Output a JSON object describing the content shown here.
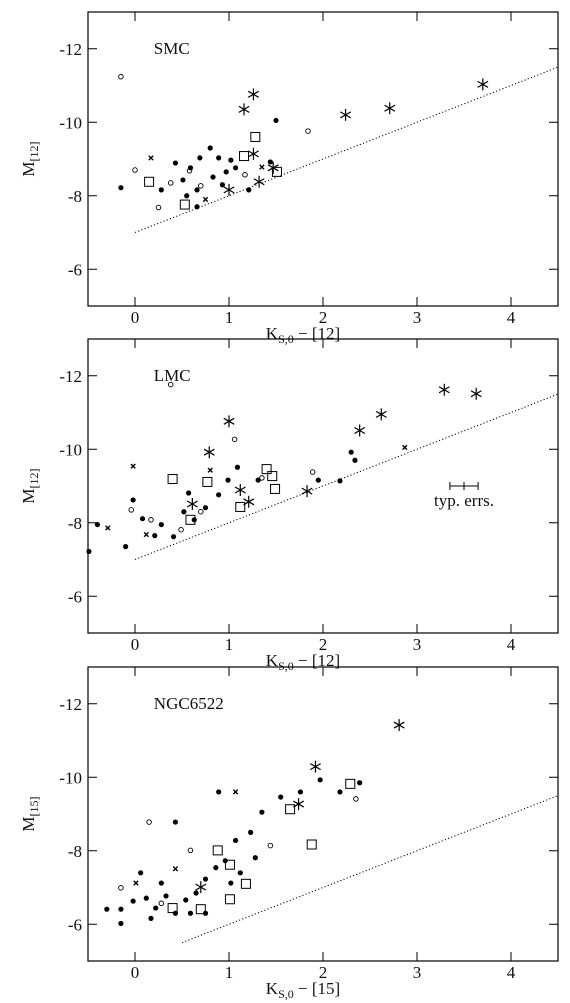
{
  "chart_data": [
    {
      "type": "scatter",
      "title": "SMC",
      "x_label": {
        "main": "K",
        "sub": "S,0",
        "rest": " − [12]"
      },
      "y_label": {
        "main": "M",
        "sub": "[12]"
      },
      "xlim": [
        -0.5,
        4.5
      ],
      "ylim": [
        -5,
        -13
      ],
      "xticks": [
        0,
        1,
        2,
        3,
        4
      ],
      "yticks": [
        -12,
        -10,
        -8,
        -6
      ],
      "reference_line": {
        "x": [
          0,
          4.5
        ],
        "values": [
          -7,
          -11.5
        ],
        "style": "dotted"
      },
      "series": [
        {
          "marker": "asterisk",
          "color": "#000",
          "x": [
            1.26,
            1.16,
            2.24,
            2.71,
            3.7,
            1.26,
            1.0,
            1.32,
            1.47
          ],
          "values": [
            -10.76,
            -10.35,
            -10.2,
            -10.38,
            -11.03,
            -9.14,
            -8.16,
            -8.38,
            -8.76
          ]
        },
        {
          "marker": "square",
          "color": "#000",
          "x": [
            1.28,
            1.16,
            0.15,
            0.53,
            1.51
          ],
          "values": [
            -9.6,
            -9.08,
            -8.38,
            -7.76,
            -8.65
          ]
        },
        {
          "marker": "circle",
          "color": "#000",
          "x": [
            -0.15,
            1.84,
            0.0,
            0.38,
            0.25,
            0.58,
            0.7,
            1.17
          ],
          "values": [
            -11.24,
            -9.76,
            -8.7,
            -8.35,
            -7.68,
            -8.68,
            -8.27,
            -8.57
          ]
        },
        {
          "marker": "cross",
          "color": "#000",
          "x": [
            0.17,
            1.35,
            0.75
          ],
          "values": [
            -9.03,
            -8.78,
            -7.9
          ]
        },
        {
          "marker": "dot",
          "color": "#000",
          "x": [
            -0.15,
            0.43,
            0.59,
            0.69,
            0.8,
            0.89,
            1.02,
            1.07,
            0.51,
            0.66,
            0.83,
            0.93,
            1.5,
            0.28,
            0.55,
            1.44,
            1.21,
            0.66,
            0.97
          ],
          "values": [
            -8.22,
            -8.89,
            -8.76,
            -9.03,
            -9.3,
            -9.03,
            -8.97,
            -8.76,
            -8.43,
            -8.16,
            -8.51,
            -8.3,
            -10.05,
            -8.16,
            -8.0,
            -8.92,
            -8.16,
            -7.7,
            -8.65
          ]
        }
      ]
    },
    {
      "type": "scatter",
      "title": "LMC",
      "x_label": {
        "main": "K",
        "sub": "S,0",
        "rest": " − [12]"
      },
      "y_label": {
        "main": "M",
        "sub": "[12]"
      },
      "xlim": [
        -0.5,
        4.5
      ],
      "ylim": [
        -5,
        -13
      ],
      "xticks": [
        0,
        1,
        2,
        3,
        4
      ],
      "yticks": [
        -12,
        -10,
        -8,
        -6
      ],
      "reference_line": {
        "x": [
          0,
          4.5
        ],
        "values": [
          -7,
          -11.5
        ],
        "style": "dotted"
      },
      "errorbar": {
        "x": 3.5,
        "y": -9.0,
        "xerr": 0.15,
        "label": "typ. errs."
      },
      "series": [
        {
          "marker": "asterisk",
          "color": "#000",
          "x": [
            1.0,
            0.79,
            2.39,
            2.62,
            3.29,
            3.63,
            1.12,
            1.83,
            1.21,
            0.61
          ],
          "values": [
            -10.76,
            -9.92,
            -10.51,
            -10.95,
            -11.62,
            -11.51,
            -8.89,
            -8.86,
            -8.57,
            -8.51
          ]
        },
        {
          "marker": "square",
          "color": "#000",
          "x": [
            0.4,
            0.77,
            1.4,
            1.46,
            1.49,
            1.12,
            0.59
          ],
          "values": [
            -9.19,
            -9.11,
            -9.46,
            -9.27,
            -8.92,
            -8.43,
            -8.08
          ]
        },
        {
          "marker": "circle",
          "color": "#000",
          "x": [
            0.38,
            1.06,
            -0.04,
            0.17,
            0.49,
            1.35,
            1.89,
            0.7
          ],
          "values": [
            -11.76,
            -10.27,
            -8.35,
            -8.08,
            -7.81,
            -9.22,
            -9.38,
            -8.3
          ]
        },
        {
          "marker": "cross",
          "color": "#000",
          "x": [
            -0.02,
            -0.29,
            2.87,
            0.8,
            0.12
          ],
          "values": [
            -9.54,
            -7.86,
            -10.05,
            -9.43,
            -7.68
          ]
        },
        {
          "marker": "dot",
          "color": "#000",
          "x": [
            -0.49,
            -0.4,
            -0.1,
            -0.02,
            0.08,
            0.28,
            0.41,
            0.52,
            0.63,
            0.75,
            0.89,
            0.99,
            1.09,
            1.31,
            2.3,
            2.34,
            2.18,
            1.95,
            0.21,
            0.57
          ],
          "values": [
            -7.22,
            -7.95,
            -7.35,
            -8.62,
            -8.11,
            -7.95,
            -7.62,
            -8.3,
            -8.08,
            -8.41,
            -8.76,
            -9.16,
            -9.51,
            -9.16,
            -9.92,
            -9.7,
            -9.14,
            -9.16,
            -7.65,
            -8.81
          ]
        }
      ]
    },
    {
      "type": "scatter",
      "title": "NGC6522",
      "x_label": {
        "main": "K",
        "sub": "S,0",
        "rest": " − [15]"
      },
      "y_label": {
        "main": "M",
        "sub": "[15]"
      },
      "xlim": [
        -0.5,
        4.5
      ],
      "ylim": [
        -5,
        -13
      ],
      "xticks": [
        0,
        1,
        2,
        3,
        4
      ],
      "yticks": [
        -12,
        -10,
        -8,
        -6
      ],
      "reference_line": {
        "x": [
          0.5,
          4.5
        ],
        "values": [
          -5.5,
          -9.5
        ],
        "style": "dotted"
      },
      "series": [
        {
          "marker": "asterisk",
          "color": "#000",
          "x": [
            2.81,
            1.92,
            1.74,
            0.7
          ],
          "values": [
            -11.42,
            -10.29,
            -9.27,
            -7.01
          ]
        },
        {
          "marker": "square",
          "color": "#000",
          "x": [
            2.29,
            1.65,
            1.88,
            0.88,
            1.01,
            1.18,
            1.01,
            0.7,
            0.4
          ],
          "values": [
            -9.82,
            -9.13,
            -8.17,
            -8.01,
            -7.62,
            -7.1,
            -6.68,
            -6.41,
            -6.44
          ]
        },
        {
          "marker": "circle",
          "color": "#000",
          "x": [
            0.15,
            2.35,
            0.59,
            -0.15,
            0.28,
            1.44
          ],
          "values": [
            -8.78,
            -9.41,
            -8.01,
            -6.99,
            -6.57,
            -8.14
          ]
        },
        {
          "marker": "cross",
          "color": "#000",
          "x": [
            1.07,
            0.43,
            0.01
          ],
          "values": [
            -9.6,
            -7.51,
            -7.12
          ]
        },
        {
          "marker": "dot",
          "color": "#000",
          "x": [
            -0.3,
            -0.15,
            -0.02,
            0.12,
            0.22,
            0.33,
            0.43,
            0.54,
            0.65,
            0.75,
            0.86,
            0.96,
            1.07,
            1.23,
            1.35,
            1.55,
            1.76,
            1.97,
            2.18,
            2.39,
            0.89,
            0.43,
            0.06,
            0.28,
            0.59,
            1.12,
            1.28,
            0.17,
            -0.15,
            0.75,
            1.02
          ],
          "values": [
            -6.41,
            -6.41,
            -6.63,
            -6.71,
            -6.44,
            -6.77,
            -6.3,
            -6.66,
            -6.85,
            -7.23,
            -7.54,
            -7.73,
            -8.28,
            -8.5,
            -9.05,
            -9.46,
            -9.6,
            -9.93,
            -9.6,
            -9.85,
            -9.6,
            -8.78,
            -7.4,
            -7.12,
            -6.3,
            -7.4,
            -7.81,
            -6.16,
            -6.02,
            -6.3,
            -7.12
          ]
        }
      ]
    }
  ]
}
